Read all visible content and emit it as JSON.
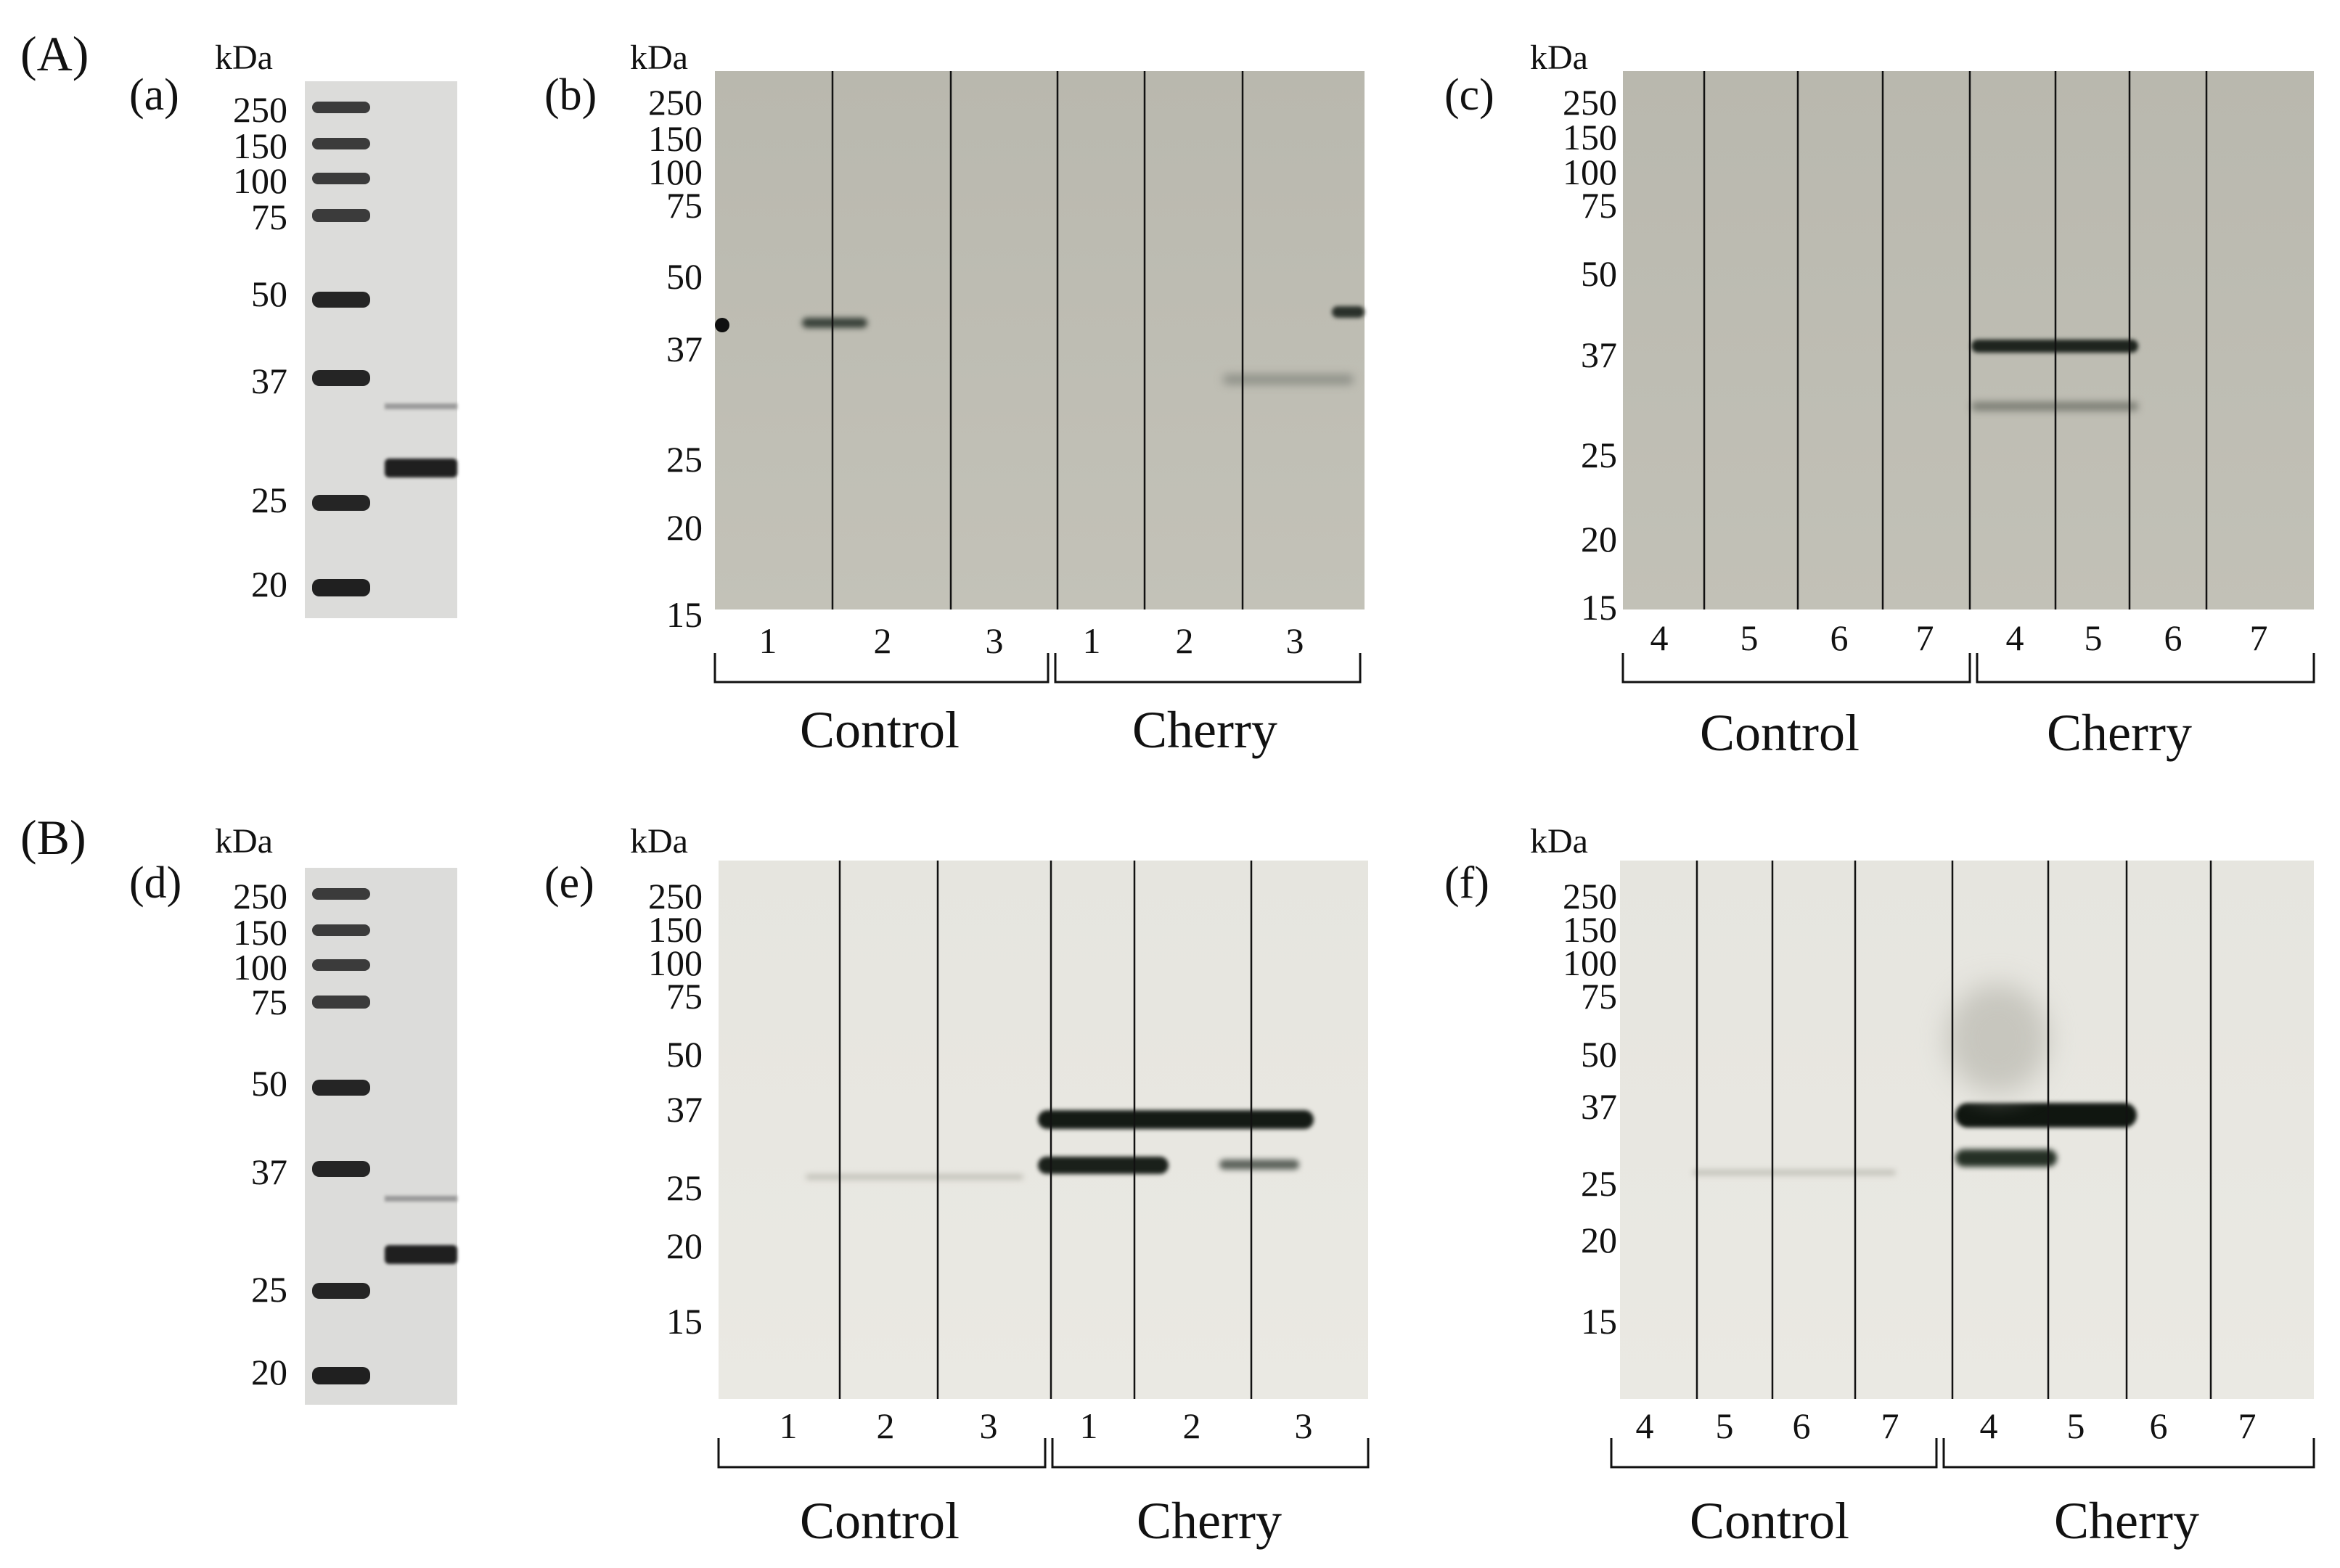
{
  "sections": {
    "A": "(A)",
    "B": "(B)"
  },
  "unit_label": "kDa",
  "panels": {
    "a": {
      "label": "(a)",
      "markers": [
        "250",
        "150",
        "100",
        "75",
        "50",
        "37",
        "25",
        "20"
      ]
    },
    "b": {
      "label": "(b)",
      "markers": [
        "250",
        "150",
        "100",
        "75",
        "50",
        "37",
        "25",
        "20",
        "15"
      ],
      "lanes": [
        "1",
        "2",
        "3",
        "1",
        "2",
        "3"
      ],
      "groups": [
        "Control",
        "Cherry"
      ]
    },
    "c": {
      "label": "(c)",
      "markers": [
        "250",
        "150",
        "100",
        "75",
        "50",
        "37",
        "25",
        "20",
        "15"
      ],
      "lanes": [
        "4",
        "5",
        "6",
        "7",
        "4",
        "5",
        "6",
        "7"
      ],
      "groups": [
        "Control",
        "Cherry"
      ]
    },
    "d": {
      "label": "(d)",
      "markers": [
        "250",
        "150",
        "100",
        "75",
        "50",
        "37",
        "25",
        "20"
      ]
    },
    "e": {
      "label": "(e)",
      "markers": [
        "250",
        "150",
        "100",
        "75",
        "50",
        "37",
        "25",
        "20",
        "15"
      ],
      "lanes": [
        "1",
        "2",
        "3",
        "1",
        "2",
        "3"
      ],
      "groups": [
        "Control",
        "Cherry"
      ]
    },
    "f": {
      "label": "(f)",
      "markers": [
        "250",
        "150",
        "100",
        "75",
        "50",
        "37",
        "25",
        "20",
        "15"
      ],
      "lanes": [
        "4",
        "5",
        "6",
        "7",
        "4",
        "5",
        "6",
        "7"
      ],
      "groups": [
        "Control",
        "Cherry"
      ]
    }
  },
  "colors": {
    "blot_top": "#b9b8ae",
    "blot_bottom": "#e7e6e0",
    "gel": "#dcdcda",
    "band": "#141a14",
    "ladder": "#2a2a2a"
  }
}
